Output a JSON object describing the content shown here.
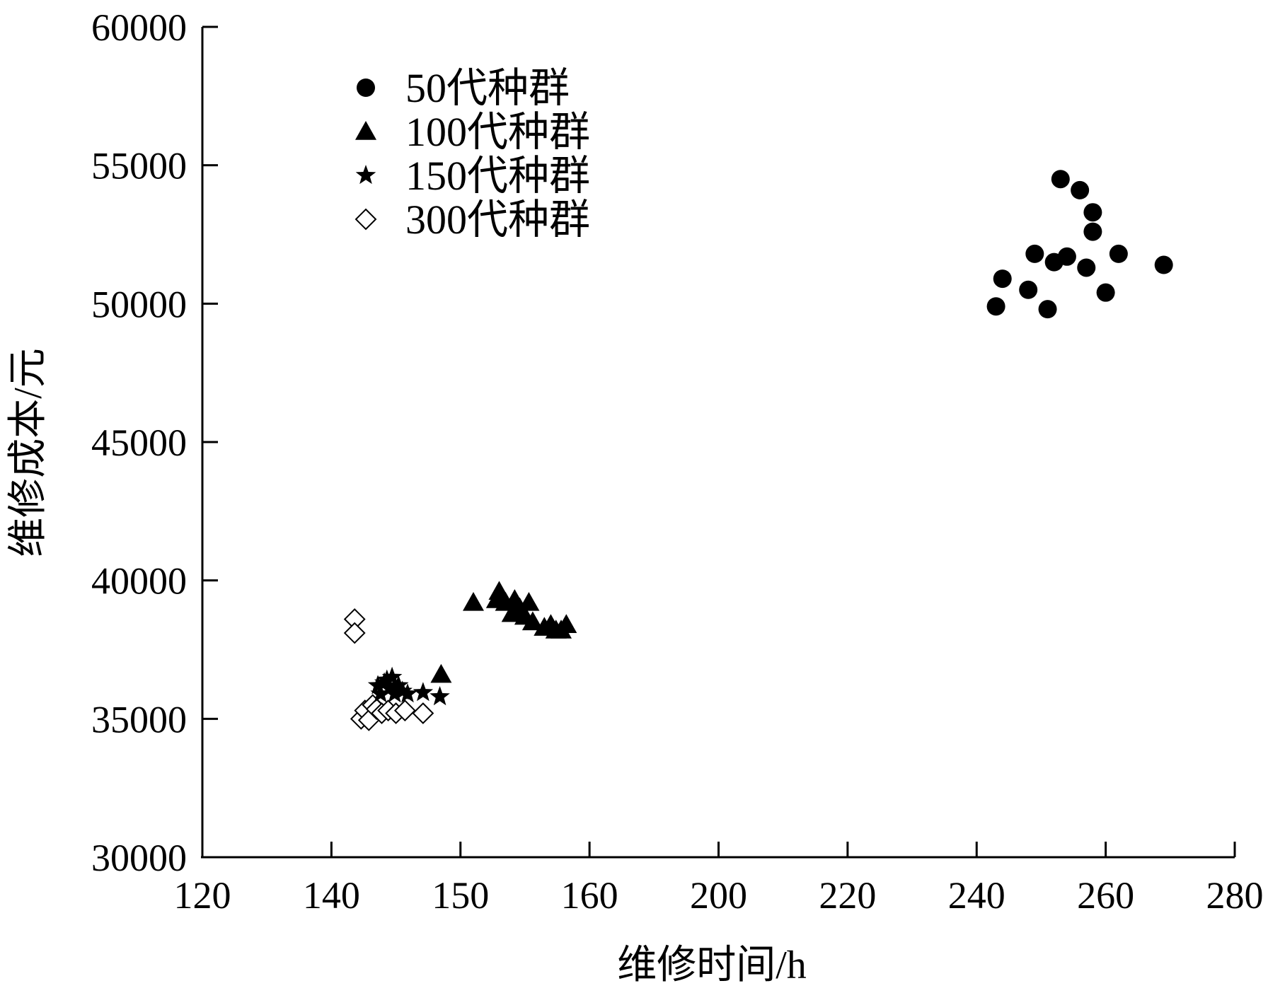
{
  "chart_data": {
    "type": "scatter",
    "title": "",
    "xlabel": "维修时间/h",
    "ylabel": "维修成本/元",
    "x_tick_labels": [
      "120",
      "140",
      "150",
      "160",
      "200",
      "220",
      "240",
      "260",
      "280"
    ],
    "y_ticks": [
      30000,
      35000,
      40000,
      45000,
      50000,
      55000,
      60000
    ],
    "ylim": [
      30000,
      60000
    ],
    "grid": false,
    "legend_position": "top-left",
    "series": [
      {
        "name": "50代种群",
        "marker": "circle",
        "points": [
          {
            "x": 243,
            "y": 49900
          },
          {
            "x": 244,
            "y": 50900
          },
          {
            "x": 248,
            "y": 50500
          },
          {
            "x": 249,
            "y": 51800
          },
          {
            "x": 251,
            "y": 49800
          },
          {
            "x": 252,
            "y": 51500
          },
          {
            "x": 253,
            "y": 54500
          },
          {
            "x": 254,
            "y": 51700
          },
          {
            "x": 256,
            "y": 54100
          },
          {
            "x": 257,
            "y": 51300
          },
          {
            "x": 258,
            "y": 53300
          },
          {
            "x": 258,
            "y": 52600
          },
          {
            "x": 260,
            "y": 50400
          },
          {
            "x": 262,
            "y": 51800
          },
          {
            "x": 269,
            "y": 51400
          }
        ]
      },
      {
        "name": "100代种群",
        "marker": "triangle",
        "points": [
          {
            "x": 148.5,
            "y": 36600
          },
          {
            "x": 151,
            "y": 39200
          },
          {
            "x": 152.8,
            "y": 39300
          },
          {
            "x": 153,
            "y": 39600
          },
          {
            "x": 153.5,
            "y": 39200
          },
          {
            "x": 154,
            "y": 38800
          },
          {
            "x": 154.2,
            "y": 39300
          },
          {
            "x": 154.6,
            "y": 39000
          },
          {
            "x": 155,
            "y": 38700
          },
          {
            "x": 155.3,
            "y": 39200
          },
          {
            "x": 155.6,
            "y": 38500
          },
          {
            "x": 156.5,
            "y": 38300
          },
          {
            "x": 157,
            "y": 38400
          },
          {
            "x": 157.4,
            "y": 38200
          },
          {
            "x": 157.8,
            "y": 38200
          },
          {
            "x": 158.2,
            "y": 38400
          }
        ]
      },
      {
        "name": "150代种群",
        "marker": "star",
        "points": [
          {
            "x": 143.6,
            "y": 36200
          },
          {
            "x": 143.8,
            "y": 35900
          },
          {
            "x": 144.1,
            "y": 36300
          },
          {
            "x": 144.3,
            "y": 36400
          },
          {
            "x": 144.5,
            "y": 36100
          },
          {
            "x": 144.7,
            "y": 36500
          },
          {
            "x": 144.9,
            "y": 35900
          },
          {
            "x": 145.2,
            "y": 36200
          },
          {
            "x": 145.5,
            "y": 36000
          },
          {
            "x": 145.9,
            "y": 35900
          },
          {
            "x": 147.1,
            "y": 35950
          },
          {
            "x": 148.4,
            "y": 35800
          }
        ]
      },
      {
        "name": "300代种群",
        "marker": "diamond",
        "points": [
          {
            "x": 141.8,
            "y": 38600
          },
          {
            "x": 141.8,
            "y": 38100
          },
          {
            "x": 142.3,
            "y": 35000
          },
          {
            "x": 142.6,
            "y": 35300
          },
          {
            "x": 142.9,
            "y": 34950
          },
          {
            "x": 143.2,
            "y": 35500
          },
          {
            "x": 143.5,
            "y": 35350
          },
          {
            "x": 143.9,
            "y": 35200
          },
          {
            "x": 144.4,
            "y": 35300
          },
          {
            "x": 145,
            "y": 35200
          },
          {
            "x": 145.7,
            "y": 35300
          },
          {
            "x": 147.1,
            "y": 35200
          }
        ]
      }
    ]
  }
}
